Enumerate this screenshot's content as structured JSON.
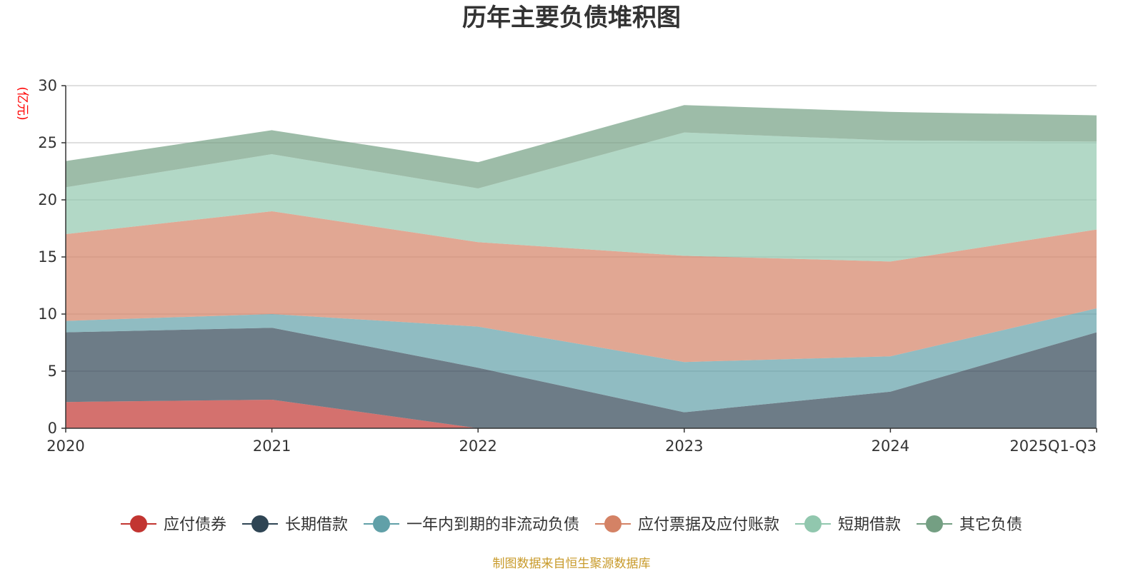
{
  "chart_data": {
    "type": "area",
    "stacked": true,
    "title": "历年主要负债堆积图",
    "y_unit": "(亿元)",
    "xlabel": "",
    "ylabel": "(亿元)",
    "ylim": [
      0,
      30
    ],
    "yticks": [
      0,
      5,
      10,
      15,
      20,
      25,
      30
    ],
    "grid": true,
    "legend_position": "bottom",
    "categories": [
      "2020",
      "2021",
      "2022",
      "2023",
      "2024",
      "2025Q1-Q3"
    ],
    "series": [
      {
        "name": "应付债券",
        "color": "#c23531",
        "values": [
          2.3,
          2.5,
          0.0,
          0.0,
          0.0,
          0.0
        ]
      },
      {
        "name": "长期借款",
        "color": "#2f4554",
        "values": [
          6.1,
          6.3,
          5.3,
          1.4,
          3.2,
          8.4
        ]
      },
      {
        "name": "一年内到期的非流动负债",
        "color": "#61a0a8",
        "values": [
          1.0,
          1.2,
          3.6,
          4.4,
          3.1,
          2.1
        ]
      },
      {
        "name": "应付票据及应付账款",
        "color": "#d48265",
        "values": [
          7.6,
          9.0,
          7.4,
          9.3,
          8.3,
          6.9
        ]
      },
      {
        "name": "短期借款",
        "color": "#91c7ae",
        "values": [
          4.1,
          5.0,
          4.7,
          10.8,
          10.6,
          7.7
        ]
      },
      {
        "name": "其它负债",
        "color": "#749f83",
        "values": [
          2.3,
          2.1,
          2.3,
          2.4,
          2.5,
          2.3
        ]
      }
    ]
  },
  "source_note": "制图数据来自恒生聚源数据库",
  "colors": {
    "unit_label": "#ff0000",
    "source_note": "#c89a2a",
    "axis": "#333333",
    "grid": "#cccccc"
  }
}
